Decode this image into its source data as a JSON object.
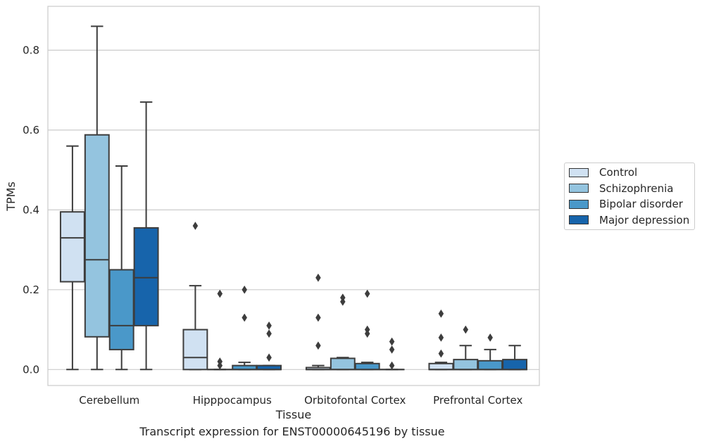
{
  "caption": "Transcript expression for ENST00000645196 by tissue",
  "chart_data": {
    "type": "box",
    "title": "",
    "xlabel": "Tissue",
    "ylabel": "TPMs",
    "ylim": [
      -0.04,
      0.91
    ],
    "yticks": [
      0.0,
      0.2,
      0.4,
      0.6,
      0.8
    ],
    "ytick_labels": [
      "0.0",
      "0.2",
      "0.4",
      "0.6",
      "0.8"
    ],
    "grid": "horizontal",
    "legend_position": "right",
    "categories": [
      "Cerebellum",
      "Hipppocampus",
      "Orbitofontal Cortex",
      "Prefrontal Cortex"
    ],
    "series": [
      {
        "name": "Control",
        "color": "#d0e1f2",
        "boxes": [
          {
            "whisker_low": 0.0,
            "q1": 0.22,
            "median": 0.33,
            "q3": 0.395,
            "whisker_high": 0.56,
            "outliers": []
          },
          {
            "whisker_low": 0.0,
            "q1": 0.0,
            "median": 0.03,
            "q3": 0.1,
            "whisker_high": 0.21,
            "outliers": [
              0.36
            ]
          },
          {
            "whisker_low": 0.0,
            "q1": 0.0,
            "median": 0.0,
            "q3": 0.005,
            "whisker_high": 0.01,
            "outliers": [
              0.23,
              0.13,
              0.06
            ]
          },
          {
            "whisker_low": 0.0,
            "q1": 0.0,
            "median": 0.0,
            "q3": 0.015,
            "whisker_high": 0.018,
            "outliers": [
              0.14,
              0.08,
              0.04
            ]
          }
        ]
      },
      {
        "name": "Schizophrenia",
        "color": "#94c4df",
        "boxes": [
          {
            "whisker_low": 0.0,
            "q1": 0.082,
            "median": 0.275,
            "q3": 0.588,
            "whisker_high": 0.86,
            "outliers": []
          },
          {
            "whisker_low": 0.0,
            "q1": 0.0,
            "median": 0.0,
            "q3": 0.0,
            "whisker_high": 0.0,
            "outliers": [
              0.19,
              0.02,
              0.01
            ]
          },
          {
            "whisker_low": 0.0,
            "q1": 0.0,
            "median": 0.0,
            "q3": 0.028,
            "whisker_high": 0.03,
            "outliers": [
              0.18,
              0.17
            ]
          },
          {
            "whisker_low": 0.0,
            "q1": 0.0,
            "median": 0.0,
            "q3": 0.025,
            "whisker_high": 0.06,
            "outliers": [
              0.1
            ]
          }
        ]
      },
      {
        "name": "Bipolar disorder",
        "color": "#4a98c9",
        "boxes": [
          {
            "whisker_low": 0.0,
            "q1": 0.05,
            "median": 0.11,
            "q3": 0.25,
            "whisker_high": 0.51,
            "outliers": []
          },
          {
            "whisker_low": 0.0,
            "q1": 0.0,
            "median": 0.0,
            "q3": 0.01,
            "whisker_high": 0.018,
            "outliers": [
              0.2,
              0.13
            ]
          },
          {
            "whisker_low": 0.0,
            "q1": 0.0,
            "median": 0.0,
            "q3": 0.015,
            "whisker_high": 0.018,
            "outliers": [
              0.19,
              0.1,
              0.09
            ]
          },
          {
            "whisker_low": 0.0,
            "q1": 0.0,
            "median": 0.0,
            "q3": 0.022,
            "whisker_high": 0.05,
            "outliers": [
              0.08
            ]
          }
        ]
      },
      {
        "name": "Major depression",
        "color": "#1764ab",
        "boxes": [
          {
            "whisker_low": 0.0,
            "q1": 0.11,
            "median": 0.23,
            "q3": 0.355,
            "whisker_high": 0.67,
            "outliers": []
          },
          {
            "whisker_low": 0.0,
            "q1": 0.0,
            "median": 0.0,
            "q3": 0.01,
            "whisker_high": 0.01,
            "outliers": [
              0.11,
              0.09,
              0.03
            ]
          },
          {
            "whisker_low": 0.0,
            "q1": 0.0,
            "median": 0.0,
            "q3": 0.0,
            "whisker_high": 0.0,
            "outliers": [
              0.07,
              0.05,
              0.01
            ]
          },
          {
            "whisker_low": 0.0,
            "q1": 0.0,
            "median": 0.0,
            "q3": 0.025,
            "whisker_high": 0.06,
            "outliers": []
          }
        ]
      }
    ]
  }
}
